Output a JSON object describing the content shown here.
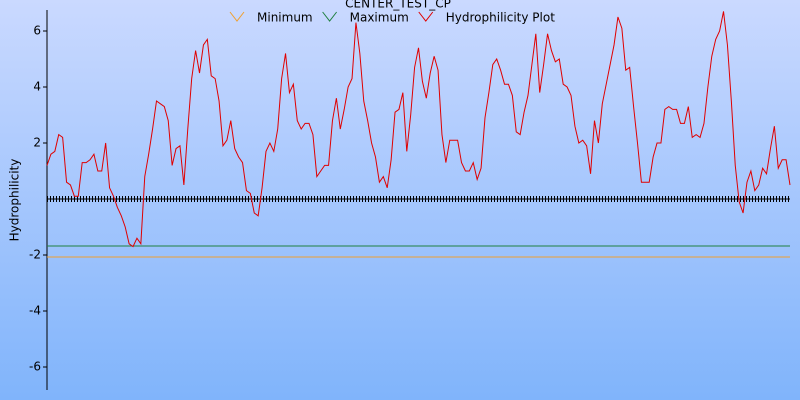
{
  "chart_data": {
    "type": "line",
    "title": "CENTER_TEST_CP",
    "ylabel": "Hydrophilicity",
    "ylim": [
      -6.75,
      6.75
    ],
    "yticks": [
      -6,
      -4,
      -2,
      2,
      4,
      6
    ],
    "series": [
      {
        "name": "Minimum",
        "color": "#f0a030",
        "values": [
          -2.07
        ]
      },
      {
        "name": "Maximum",
        "color": "#208040",
        "values": [
          -1.68
        ]
      },
      {
        "name": "Hydrophilicity Plot",
        "color": "#e00000",
        "values": [
          1.2,
          1.6,
          1.7,
          2.3,
          2.2,
          0.6,
          0.5,
          0.1,
          0.1,
          1.3,
          1.3,
          1.4,
          1.6,
          1.0,
          1.0,
          2.0,
          0.4,
          0.1,
          -0.3,
          -0.6,
          -1.0,
          -1.6,
          -1.7,
          -1.4,
          -1.6,
          0.8,
          1.6,
          2.5,
          3.5,
          3.4,
          3.3,
          2.8,
          1.2,
          1.8,
          1.9,
          0.5,
          2.5,
          4.3,
          5.3,
          4.5,
          5.5,
          5.7,
          4.4,
          4.3,
          3.5,
          1.9,
          2.1,
          2.8,
          1.8,
          1.5,
          1.3,
          0.3,
          0.2,
          -0.5,
          -0.6,
          0.4,
          1.7,
          2.0,
          1.7,
          2.5,
          4.3,
          5.2,
          3.8,
          4.1,
          2.8,
          2.5,
          2.7,
          2.7,
          2.3,
          0.8,
          1.0,
          1.2,
          1.2,
          2.8,
          3.6,
          2.5,
          3.2,
          4.0,
          4.3,
          6.3,
          5.2,
          3.5,
          2.8,
          2.0,
          1.5,
          0.6,
          0.8,
          0.4,
          1.4,
          3.1,
          3.2,
          3.8,
          1.7,
          3.0,
          4.7,
          5.4,
          4.2,
          3.6,
          4.5,
          5.1,
          4.6,
          2.3,
          1.3,
          2.1,
          2.1,
          2.1,
          1.3,
          1.0,
          1.0,
          1.3,
          0.7,
          1.1,
          2.9,
          3.8,
          4.8,
          5.0,
          4.6,
          4.1,
          4.1,
          3.7,
          2.4,
          2.3,
          3.1,
          3.7,
          4.8,
          5.9,
          3.8,
          4.8,
          5.9,
          5.3,
          4.9,
          5.0,
          4.1,
          4.0,
          3.7,
          2.6,
          2.0,
          2.1,
          1.9,
          0.9,
          2.8,
          2.0,
          3.4,
          4.1,
          4.8,
          5.5,
          6.5,
          6.1,
          4.6,
          4.7,
          3.3,
          2.0,
          0.6,
          0.6,
          0.6,
          1.5,
          2.0,
          2.0,
          3.2,
          3.3,
          3.2,
          3.2,
          2.7,
          2.7,
          3.3,
          2.2,
          2.3,
          2.2,
          2.7,
          4.0,
          5.1,
          5.7,
          6.0,
          6.7,
          5.5,
          3.5,
          1.2,
          -0.1,
          -0.5,
          0.6,
          1.0,
          0.3,
          0.5,
          1.1,
          0.9,
          1.8,
          2.6,
          1.1,
          1.4,
          1.4,
          0.5
        ]
      }
    ]
  }
}
